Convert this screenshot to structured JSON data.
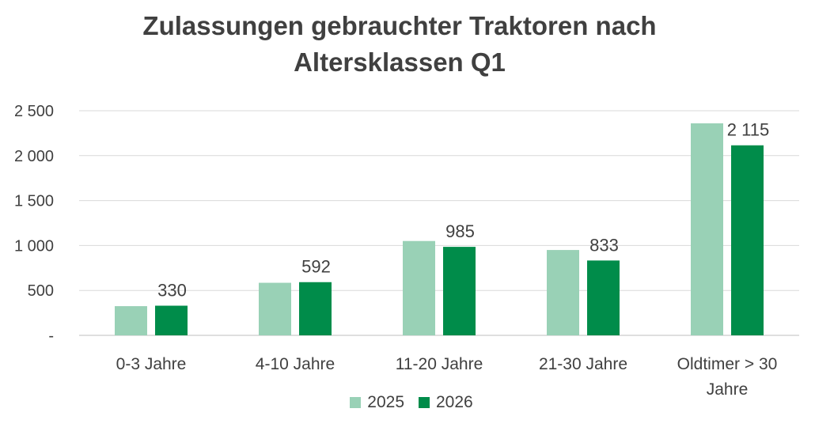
{
  "chart_data": {
    "type": "bar",
    "title_lines": [
      "Zulassungen gebrauchter Traktoren nach",
      "Altersklassen Q1"
    ],
    "xlabel": "",
    "ylabel": "",
    "categories": [
      [
        "0-3 Jahre"
      ],
      [
        "4-10 Jahre"
      ],
      [
        "11-20 Jahre"
      ],
      [
        "21-30 Jahre"
      ],
      [
        "Oldtimer > 30",
        "Jahre"
      ]
    ],
    "series": [
      {
        "name": "2025",
        "color": "#99d1b6",
        "values": [
          325,
          585,
          1050,
          950,
          2360
        ],
        "labels": [
          "",
          "",
          "",
          "",
          ""
        ]
      },
      {
        "name": "2026",
        "color": "#008c4a",
        "values": [
          330,
          592,
          985,
          833,
          2115
        ],
        "labels": [
          "330",
          "592",
          "985",
          "833",
          "2 115"
        ]
      }
    ],
    "ylim": [
      0,
      2500
    ],
    "yticks": [
      {
        "value": 0,
        "label": "-"
      },
      {
        "value": 500,
        "label": "500"
      },
      {
        "value": 1000,
        "label": "1 000"
      },
      {
        "value": 1500,
        "label": "1 500"
      },
      {
        "value": 2000,
        "label": "2 000"
      },
      {
        "value": 2500,
        "label": "2 500"
      }
    ],
    "grid": true,
    "legend_position": "bottom"
  }
}
